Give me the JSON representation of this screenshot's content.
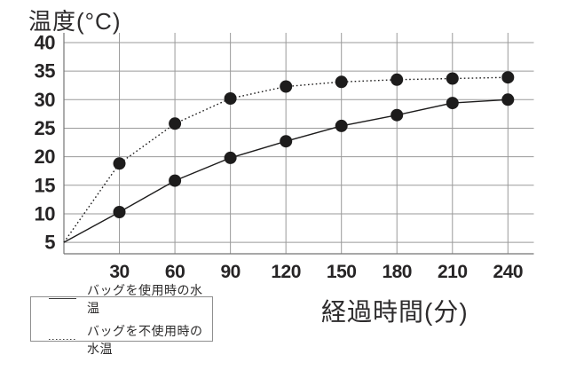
{
  "chart": {
    "title": "温度(°C)",
    "x_axis_title": "経過時間(分)"
  },
  "legend": {
    "items": [
      {
        "label": "バッグを使用時の水温",
        "style": "solid"
      },
      {
        "label": "バッグを不使用時の水温",
        "style": "dotted"
      }
    ]
  },
  "chart_data": {
    "type": "line",
    "title": "温度(°C)",
    "xlabel": "経過時間(分)",
    "ylabel": "温度(°C)",
    "x": [
      0,
      30,
      60,
      90,
      120,
      150,
      180,
      210,
      240
    ],
    "series": [
      {
        "name": "バッグを使用時の水温",
        "style": "solid",
        "marker": "circle",
        "values": [
          5,
          10.3,
          15.8,
          19.8,
          22.7,
          25.4,
          27.3,
          29.4,
          30
        ]
      },
      {
        "name": "バッグを不使用時の水温",
        "style": "dotted",
        "marker": "circle",
        "values": [
          5,
          18.8,
          25.8,
          30.2,
          32.3,
          33.1,
          33.5,
          33.7,
          33.9
        ]
      }
    ],
    "x_ticks": [
      30,
      60,
      90,
      120,
      150,
      180,
      210,
      240
    ],
    "y_ticks": [
      5,
      10,
      15,
      20,
      25,
      30,
      35,
      40
    ],
    "xlim": [
      0,
      254
    ],
    "ylim": [
      3,
      41.7
    ],
    "grid": true,
    "legend_position": "bottom-left"
  },
  "colors": {
    "background": "#ffffff",
    "text": "#262425",
    "grid": "#9a9a9a",
    "axis": "#757575",
    "series": "#1d1c1c",
    "legend_border": "#8f8f8f"
  }
}
